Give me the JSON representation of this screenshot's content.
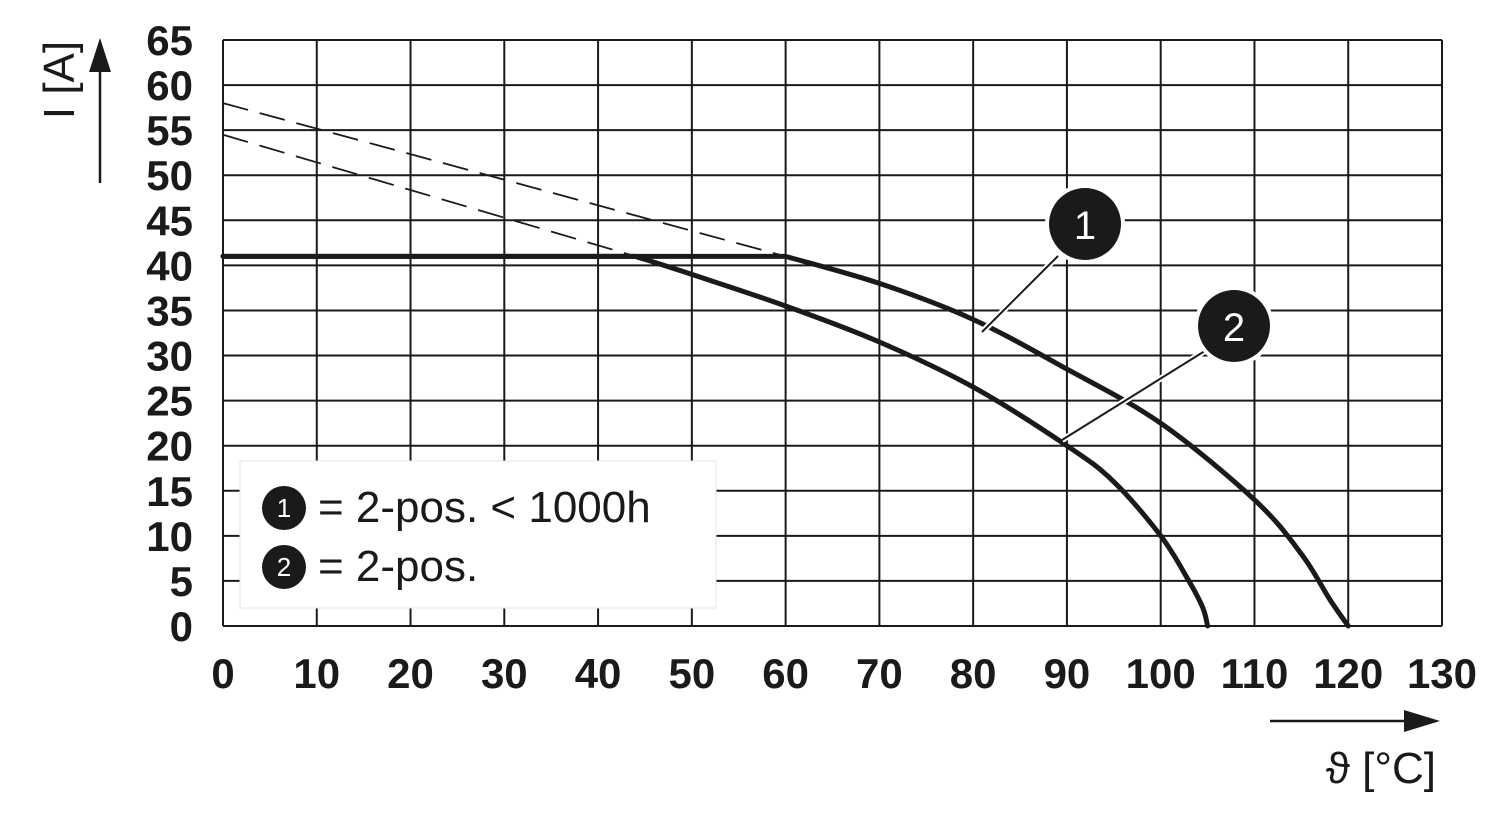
{
  "chart_data": {
    "type": "line",
    "xlabel": "ϑ [°C]",
    "ylabel": "I [A]",
    "xlim": [
      0,
      130
    ],
    "ylim": [
      0,
      65
    ],
    "x_ticks": [
      "0",
      "10",
      "20",
      "30",
      "40",
      "50",
      "60",
      "70",
      "80",
      "90",
      "100",
      "110",
      "120",
      "130"
    ],
    "y_ticks": [
      "0",
      "5",
      "10",
      "15",
      "20",
      "25",
      "30",
      "35",
      "40",
      "45",
      "50",
      "55",
      "60",
      "65"
    ],
    "grid": true,
    "legend_placement": "bottom-left",
    "series": [
      {
        "name": "2-pos. < 1000h",
        "marker": "1",
        "style": "solid",
        "points": [
          [
            0,
            41
          ],
          [
            60,
            41
          ],
          [
            70,
            38
          ],
          [
            80,
            34
          ],
          [
            90,
            28.5
          ],
          [
            100,
            22.5
          ],
          [
            110,
            14
          ],
          [
            115,
            8
          ],
          [
            118,
            3
          ],
          [
            120,
            0
          ]
        ]
      },
      {
        "name": "2-pos.",
        "marker": "2",
        "style": "solid",
        "points": [
          [
            0,
            41
          ],
          [
            44,
            41
          ],
          [
            50,
            39
          ],
          [
            60,
            35.5
          ],
          [
            70,
            31.5
          ],
          [
            80,
            26.5
          ],
          [
            90,
            20
          ],
          [
            95,
            16
          ],
          [
            100,
            10
          ],
          [
            103,
            5
          ],
          [
            104.5,
            2
          ],
          [
            105,
            0
          ]
        ]
      },
      {
        "name": "",
        "style": "dashed",
        "points": [
          [
            0,
            58
          ],
          [
            60,
            41
          ]
        ]
      },
      {
        "name": "",
        "style": "dashed",
        "points": [
          [
            0,
            54.5
          ],
          [
            44,
            41
          ]
        ]
      }
    ],
    "legend": [
      {
        "marker": "1",
        "text": "= 2-pos. < 1000h"
      },
      {
        "marker": "2",
        "text": "= 2-pos."
      }
    ],
    "callouts": [
      {
        "label": "1",
        "series": 0,
        "at_x": 81
      },
      {
        "label": "2",
        "series": 1,
        "at_x": 90
      }
    ]
  }
}
